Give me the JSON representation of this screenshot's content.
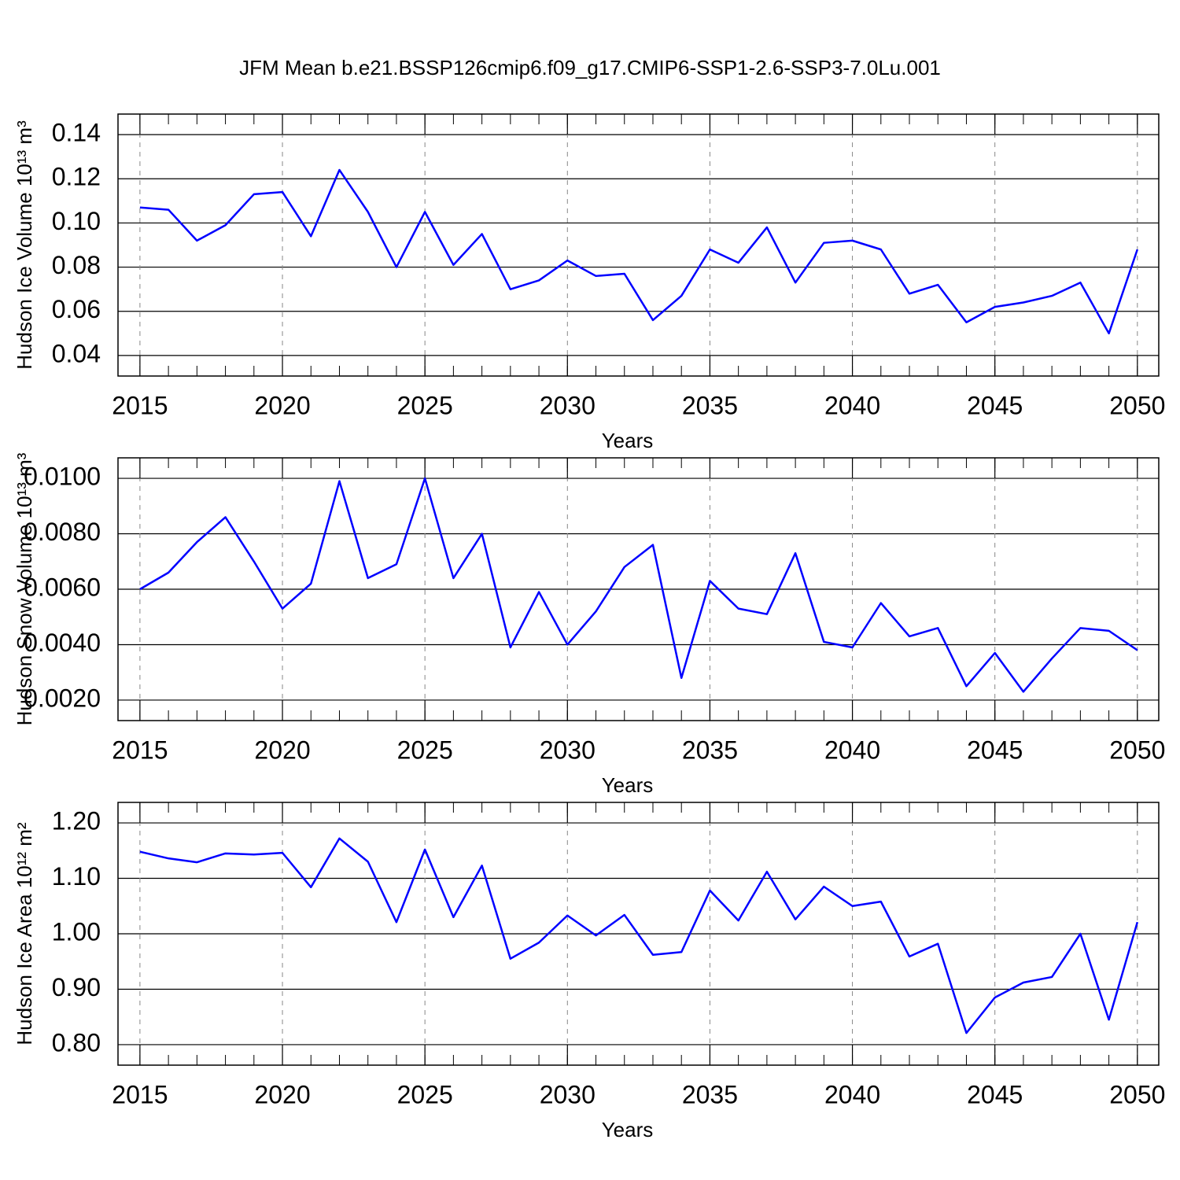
{
  "title": "JFM Mean b.e21.BSSP126cmip6.f09_g17.CMIP6-SSP1-2.6-SSP3-7.0Lu.001",
  "chart_data": [
    {
      "type": "line",
      "x_label": "Years",
      "y_label": "Hudson Ice Volume 10¹³ m³",
      "x": [
        2015,
        2016,
        2017,
        2018,
        2019,
        2020,
        2021,
        2022,
        2023,
        2024,
        2025,
        2026,
        2027,
        2028,
        2029,
        2030,
        2031,
        2032,
        2033,
        2034,
        2035,
        2036,
        2037,
        2038,
        2039,
        2040,
        2041,
        2042,
        2043,
        2044,
        2045,
        2046,
        2047,
        2048,
        2049,
        2050
      ],
      "series": [
        {
          "color": "#0000ff",
          "values": [
            0.107,
            0.106,
            0.092,
            0.099,
            0.113,
            0.114,
            0.094,
            0.124,
            0.105,
            0.08,
            0.105,
            0.081,
            0.095,
            0.07,
            0.074,
            0.083,
            0.076,
            0.077,
            0.056,
            0.067,
            0.088,
            0.082,
            0.098,
            0.073,
            0.091,
            0.092,
            0.088,
            0.068,
            0.072,
            0.055,
            0.062,
            0.064,
            0.067,
            0.073,
            0.05,
            0.088
          ]
        }
      ],
      "xlim": [
        2014.23,
        2050.75
      ],
      "ylim": [
        0.0307,
        0.1493
      ],
      "xticks": [
        2015,
        2020,
        2025,
        2030,
        2035,
        2040,
        2045,
        2050
      ],
      "yticks": [
        0.14,
        0.12,
        {
          "value": 0.1,
          "label": "0.10"
        },
        0.08,
        0.06,
        0.04
      ],
      "grid": "x"
    },
    {
      "type": "line",
      "x_label": "Years",
      "y_label": "Hudson Snow Volume 10¹³ m³",
      "x": [
        2015,
        2016,
        2017,
        2018,
        2019,
        2020,
        2021,
        2022,
        2023,
        2024,
        2025,
        2026,
        2027,
        2028,
        2029,
        2030,
        2031,
        2032,
        2033,
        2034,
        2035,
        2036,
        2037,
        2038,
        2039,
        2040,
        2041,
        2042,
        2043,
        2044,
        2045,
        2046,
        2047,
        2048,
        2049,
        2050
      ],
      "series": [
        {
          "color": "#0000ff",
          "values": [
            0.006,
            0.0066,
            0.0077,
            0.0086,
            0.007,
            0.0053,
            0.0062,
            0.0099,
            0.0064,
            0.0069,
            0.01,
            0.0064,
            0.008,
            0.0039,
            0.0059,
            0.004,
            0.0052,
            0.0068,
            0.0076,
            0.0028,
            0.0063,
            0.0053,
            0.0051,
            0.0073,
            0.0041,
            0.0039,
            0.0055,
            0.0043,
            0.0046,
            0.0025,
            0.0037,
            0.0023,
            0.0035,
            0.0046,
            0.0045,
            0.0038
          ]
        }
      ],
      "xlim": [
        2014.23,
        2050.75
      ],
      "ylim": [
        0.00126,
        0.01074
      ],
      "xticks": [
        2015,
        2020,
        2025,
        2030,
        2035,
        2040,
        2045,
        2050
      ],
      "yticks": [
        {
          "value": 0.01,
          "label": "0.0100"
        },
        {
          "value": 0.008,
          "label": "0.0080"
        },
        {
          "value": 0.006,
          "label": "0.0060"
        },
        {
          "value": 0.004,
          "label": "0.0040"
        },
        {
          "value": 0.002,
          "label": "0.0020"
        }
      ],
      "grid": "x"
    },
    {
      "type": "line",
      "x_label": "Years",
      "y_label": "Hudson Ice Area 10¹² m²",
      "x": [
        2015,
        2016,
        2017,
        2018,
        2019,
        2020,
        2021,
        2022,
        2023,
        2024,
        2025,
        2026,
        2027,
        2028,
        2029,
        2030,
        2031,
        2032,
        2033,
        2034,
        2035,
        2036,
        2037,
        2038,
        2039,
        2040,
        2041,
        2042,
        2043,
        2044,
        2045,
        2046,
        2047,
        2048,
        2049,
        2050
      ],
      "series": [
        {
          "color": "#0000ff",
          "values": [
            1.148,
            1.136,
            1.129,
            1.145,
            1.143,
            1.146,
            1.084,
            1.172,
            1.13,
            1.021,
            1.152,
            1.03,
            1.123,
            0.955,
            0.984,
            1.033,
            0.997,
            1.034,
            0.962,
            0.967,
            1.078,
            1.024,
            1.112,
            1.026,
            1.085,
            1.05,
            1.058,
            0.959,
            0.982,
            0.821,
            0.885,
            0.912,
            0.922,
            1.0,
            0.845,
            1.021
          ]
        }
      ],
      "xlim": [
        2014.23,
        2050.75
      ],
      "ylim": [
        0.763,
        1.237
      ],
      "xticks": [
        2015,
        2020,
        2025,
        2030,
        2035,
        2040,
        2045,
        2050
      ],
      "yticks": [
        {
          "value": 1.2,
          "label": "1.20"
        },
        {
          "value": 1.1,
          "label": "1.10"
        },
        {
          "value": 1.0,
          "label": "1.00"
        },
        {
          "value": 0.9,
          "label": "0.90"
        },
        {
          "value": 0.8,
          "label": "0.80"
        }
      ],
      "grid": "x"
    }
  ]
}
